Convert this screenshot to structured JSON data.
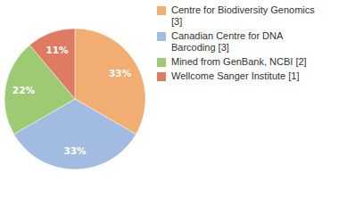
{
  "chart_data": {
    "type": "pie",
    "categories": [
      "Centre for Biodiversity Genomics [3]",
      "Canadian Centre for DNA Barcoding [3]",
      "Mined from GenBank, NCBI [2]",
      "Wellcome Sanger Institute [1]"
    ],
    "values": [
      33,
      33,
      22,
      11
    ],
    "value_labels": [
      "33%",
      "33%",
      "22%",
      "11%"
    ],
    "colors": [
      "#f1ad72",
      "#a2bbe0",
      "#9fca74",
      "#df7b62"
    ],
    "data_labels": true,
    "legend": "top-right"
  }
}
